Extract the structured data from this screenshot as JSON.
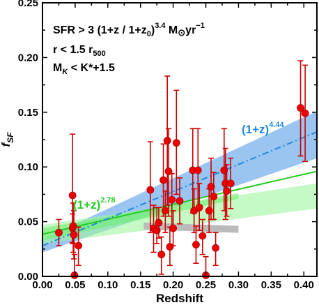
{
  "chart_data": {
    "type": "scatter",
    "xlabel": "Redshift",
    "ylabel": "f",
    "ylabel_sub": "SF",
    "xlim": [
      0.0,
      0.42
    ],
    "ylim": [
      0.0,
      0.25
    ],
    "x_ticks": [
      "0.00",
      "0.05",
      "0.10",
      "0.15",
      "0.20",
      "0.25",
      "0.30",
      "0.35",
      "0.40"
    ],
    "y_ticks": [
      "0.00",
      "0.05",
      "0.10",
      "0.15",
      "0.20",
      "0.25"
    ],
    "annotations": {
      "line1_prefix": "SFR > 3 (1+z / 1+z",
      "line1_sub": "0",
      "line1_mid": ")",
      "line1_sup": "3.4",
      "line1_suffix": " M",
      "line1_sun": "⊙",
      "line1_units": "yr",
      "line1_units_sup": "−1",
      "line2_prefix": "r < 1.5 r",
      "line2_sub": "500",
      "line3_prefix": "M",
      "line3_sub": "K",
      "line3_suffix": " < K*+1.5"
    },
    "fits": [
      {
        "label_base": "(1+z)",
        "label_exp": "2.78",
        "color": "#22cc22",
        "band_color": "#9ef59e",
        "style": "solid",
        "x_range": [
          0.0,
          0.42
        ],
        "y_start": 0.0385,
        "y_end": 0.096,
        "band_inner_low": [
          0.033,
          0.063
        ],
        "band_inner_high": [
          0.044,
          0.076
        ],
        "band_outer_low": [
          0.03,
          0.062
        ],
        "band_outer_high": [
          0.047,
          0.085
        ]
      },
      {
        "label_base": "(1+z)",
        "label_exp": "4.44",
        "color": "#2288dd",
        "band_color": "#88bbee",
        "style": "dashdot",
        "x_range": [
          0.0,
          0.42
        ],
        "y_start": 0.028,
        "y_end": 0.132,
        "band_low": [
          0.022,
          0.108
        ],
        "band_high": [
          0.034,
          0.151
        ]
      }
    ],
    "grey_band": {
      "x": [
        0.155,
        0.3
      ],
      "y_start": 0.046,
      "y_end": 0.043
    },
    "points": [
      {
        "x": 0.025,
        "y": 0.04,
        "lo": 0.028,
        "hi": 0.052
      },
      {
        "x": 0.046,
        "y": 0.074,
        "lo": 0.03,
        "hi": 0.13
      },
      {
        "x": 0.046,
        "y": 0.044,
        "lo": 0.031,
        "hi": 0.057
      },
      {
        "x": 0.047,
        "y": 0.046,
        "lo": 0.022,
        "hi": 0.067
      },
      {
        "x": 0.048,
        "y": 0.038,
        "lo": 0.016,
        "hi": 0.06
      },
      {
        "x": 0.049,
        "y": 0.001,
        "lo": 0.0,
        "hi": 0.02
      },
      {
        "x": 0.055,
        "y": 0.028,
        "lo": 0.01,
        "hi": 0.045
      },
      {
        "x": 0.165,
        "y": 0.079,
        "lo": 0.04,
        "hi": 0.123
      },
      {
        "x": 0.17,
        "y": 0.044,
        "lo": 0.022,
        "hi": 0.065
      },
      {
        "x": 0.175,
        "y": 0.042,
        "lo": 0.03,
        "hi": 0.063
      },
      {
        "x": 0.178,
        "y": 0.049,
        "lo": 0.035,
        "hi": 0.063
      },
      {
        "x": 0.182,
        "y": 0.02,
        "lo": 0.002,
        "hi": 0.036
      },
      {
        "x": 0.185,
        "y": 0.088,
        "lo": 0.055,
        "hi": 0.121
      },
      {
        "x": 0.188,
        "y": 0.06,
        "lo": 0.04,
        "hi": 0.078
      },
      {
        "x": 0.191,
        "y": 0.124,
        "lo": 0.065,
        "hi": 0.183
      },
      {
        "x": 0.193,
        "y": 0.096,
        "lo": 0.055,
        "hi": 0.135
      },
      {
        "x": 0.195,
        "y": 0.027,
        "lo": 0.01,
        "hi": 0.045
      },
      {
        "x": 0.198,
        "y": 0.07,
        "lo": 0.045,
        "hi": 0.094
      },
      {
        "x": 0.2,
        "y": 0.044,
        "lo": 0.028,
        "hi": 0.06
      },
      {
        "x": 0.205,
        "y": 0.122,
        "lo": 0.075,
        "hi": 0.17
      },
      {
        "x": 0.21,
        "y": 0.069,
        "lo": 0.048,
        "hi": 0.09
      },
      {
        "x": 0.23,
        "y": 0.097,
        "lo": 0.058,
        "hi": 0.135
      },
      {
        "x": 0.232,
        "y": 0.06,
        "lo": 0.04,
        "hi": 0.08
      },
      {
        "x": 0.235,
        "y": 0.029,
        "lo": 0.012,
        "hi": 0.046
      },
      {
        "x": 0.238,
        "y": 0.097,
        "lo": 0.06,
        "hi": 0.135
      },
      {
        "x": 0.24,
        "y": 0.063,
        "lo": 0.042,
        "hi": 0.085
      },
      {
        "x": 0.245,
        "y": 0.037,
        "lo": 0.02,
        "hi": 0.052
      },
      {
        "x": 0.25,
        "y": 0.001,
        "lo": 0.0,
        "hi": 0.018
      },
      {
        "x": 0.255,
        "y": 0.06,
        "lo": 0.04,
        "hi": 0.08
      },
      {
        "x": 0.258,
        "y": 0.082,
        "lo": 0.052,
        "hi": 0.108
      },
      {
        "x": 0.262,
        "y": 0.073,
        "lo": 0.052,
        "hi": 0.095
      },
      {
        "x": 0.265,
        "y": 0.026,
        "lo": 0.01,
        "hi": 0.04
      },
      {
        "x": 0.278,
        "y": 0.097,
        "lo": 0.06,
        "hi": 0.135
      },
      {
        "x": 0.28,
        "y": 0.085,
        "lo": 0.052,
        "hi": 0.117
      },
      {
        "x": 0.282,
        "y": 0.078,
        "lo": 0.055,
        "hi": 0.102
      },
      {
        "x": 0.288,
        "y": 0.085,
        "lo": 0.062,
        "hi": 0.108
      },
      {
        "x": 0.395,
        "y": 0.154,
        "lo": 0.11,
        "hi": 0.197
      },
      {
        "x": 0.402,
        "y": 0.149,
        "lo": 0.105,
        "hi": 0.193
      }
    ]
  }
}
